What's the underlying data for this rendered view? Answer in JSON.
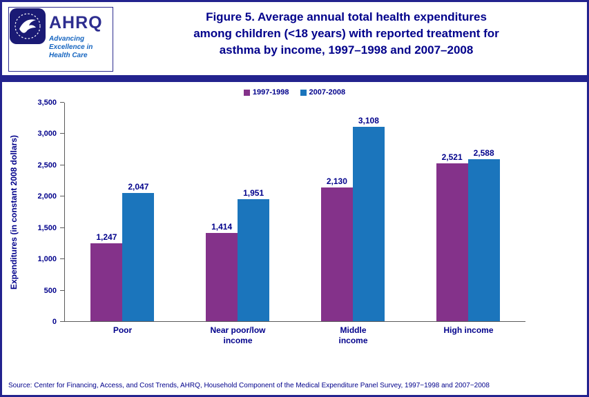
{
  "page": {
    "title_lines": [
      "Figure 5. Average annual total health expenditures",
      "among children (<18 years) with reported treatment for",
      "asthma by income, 1997–1998 and 2007–2008"
    ],
    "source": "Source: Center for Financing, Access, and Cost Trends, AHRQ, Household Component of the Medical Expenditure Panel Survey, 1997−1998 and 2007−2008"
  },
  "logo": {
    "org": "AHRQ",
    "tagline_lines": [
      "Advancing",
      "Excellence in",
      "Health Care"
    ]
  },
  "colors": {
    "navy_text": "#00008B",
    "page_border": "#23238E",
    "series_1997": "#84328A",
    "series_2007": "#1B75BC"
  },
  "chart_data": {
    "type": "bar",
    "title": "Average annual total health expenditures among children (<18 years) with reported treatment for asthma by income, 1997–1998 and 2007–2008",
    "categories": [
      "Poor",
      "Near poor/low income",
      "Middle income",
      "High income"
    ],
    "categories_display": [
      [
        "Poor"
      ],
      [
        "Near poor/low",
        "income"
      ],
      [
        "Middle",
        "income"
      ],
      [
        "High income"
      ]
    ],
    "series": [
      {
        "name": "1997-1998",
        "color": "#84328A",
        "values": [
          1247,
          1414,
          2130,
          2521
        ]
      },
      {
        "name": "2007-2008",
        "color": "#1B75BC",
        "values": [
          2047,
          1951,
          3108,
          2588
        ]
      }
    ],
    "value_labels": [
      [
        "1,247",
        "1,414",
        "2,130",
        "2,521"
      ],
      [
        "2,047",
        "1,951",
        "3,108",
        "2,588"
      ]
    ],
    "xlabel": "",
    "ylabel": "Expenditures (in constant 2008 dollars)",
    "ylim": [
      0,
      3500
    ],
    "ytick_step": 500,
    "yticks": [
      "0",
      "500",
      "1,000",
      "1,500",
      "2,000",
      "2,500",
      "3,000",
      "3,500"
    ],
    "grid": false,
    "legend_position": "top-center"
  }
}
